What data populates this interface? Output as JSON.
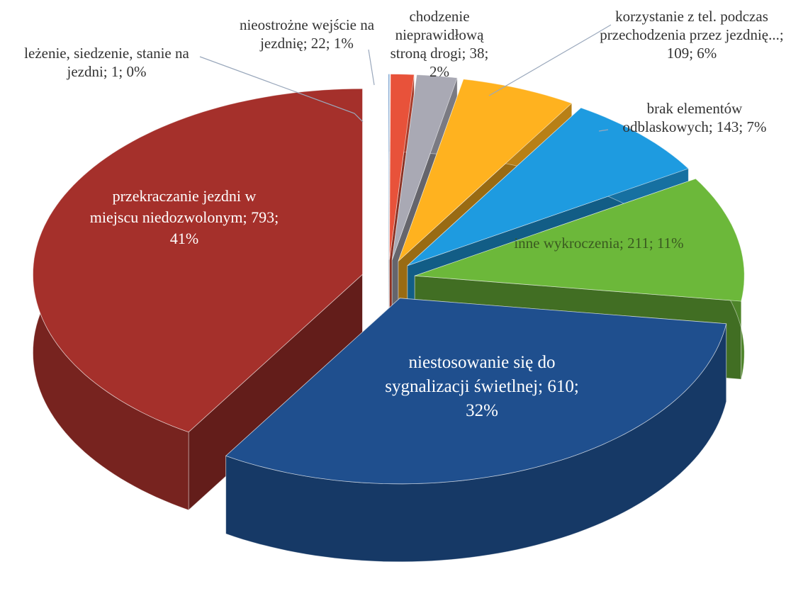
{
  "chart_data": {
    "type": "pie3d",
    "categories": [
      "leżenie, siedzenie, stanie na jezdni; 1; 0%",
      "nieostrożne wejście na jezdnię; 22; 1%",
      "chodzenie nieprawidłową stroną drogi; 38; 2%",
      "korzystanie z tel. podczas przechodzenia przez jezdnię...; 109; 6%",
      "brak elementów odblaskowych; 143; 7%",
      "inne wykroczenia; 211; 11%",
      "niestosowanie się do sygnalizacji świetlnej; 610; 32%",
      "przekraczanie jezdni w miejscu niedozwolonym; 793; 41%"
    ],
    "values": [
      1,
      22,
      38,
      109,
      143,
      211,
      610,
      793
    ],
    "colors": [
      "#4a7ebb",
      "#e8523a",
      "#a9a9b4",
      "#ffb21f",
      "#1e9be0",
      "#6cb83a",
      "#1f4f8e",
      "#a5302b"
    ]
  }
}
